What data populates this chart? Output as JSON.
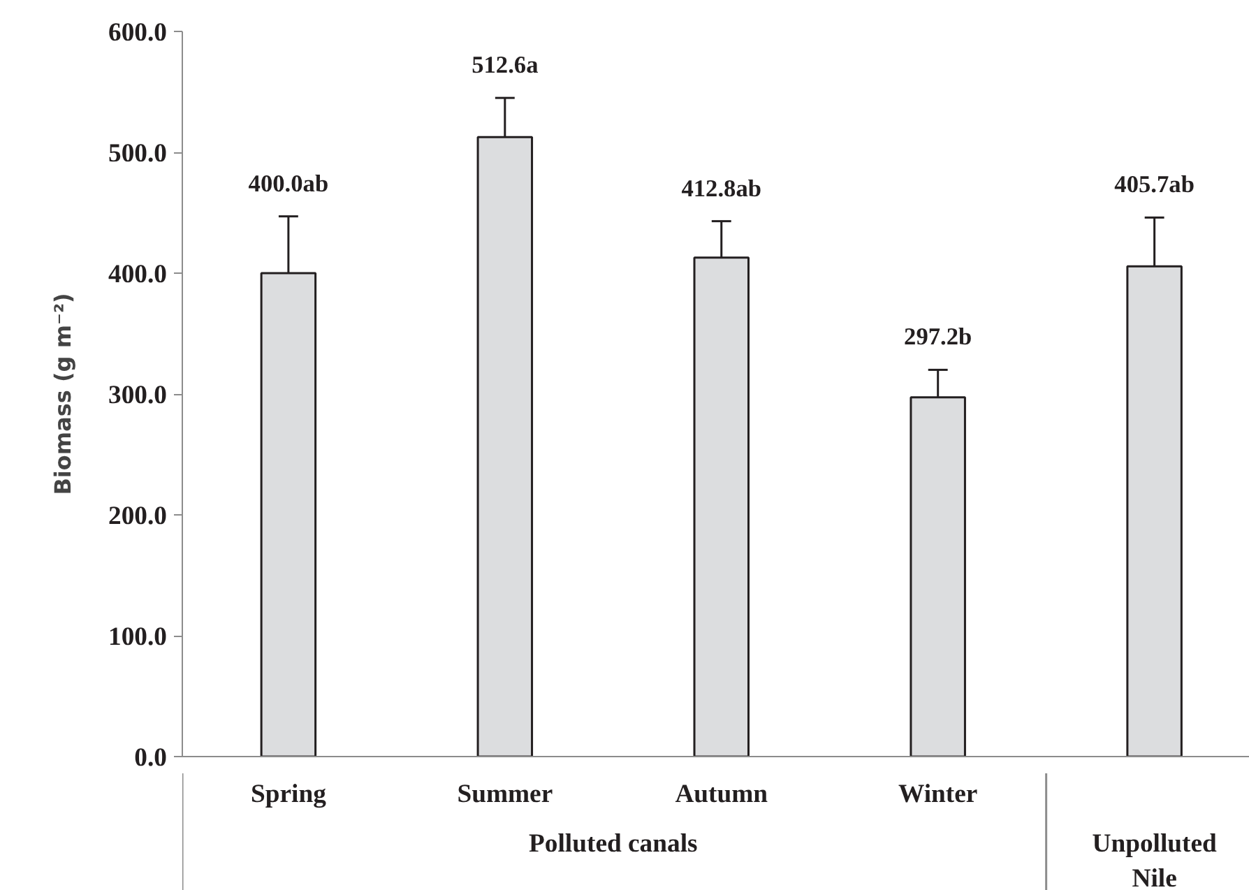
{
  "chart_data": {
    "type": "bar",
    "ylabel": "Biomass (g m⁻²)",
    "categories": [
      "Spring",
      "Summer",
      "Autumn",
      "Winter",
      null
    ],
    "values": [
      400.0,
      512.6,
      412.8,
      297.2,
      405.7
    ],
    "value_labels": [
      "400.0ab",
      "512.6a",
      "412.8ab",
      "297.2b",
      "405.7ab"
    ],
    "errors": [
      [
        400.0,
        447
      ],
      [
        512.6,
        545
      ],
      [
        412.8,
        443
      ],
      [
        297.2,
        320
      ],
      [
        405.7,
        446
      ]
    ],
    "color": "#dcdddf",
    "ylim": [
      0,
      600
    ],
    "yticks": [
      {
        "value": 0,
        "label": "0.0"
      },
      {
        "value": 100,
        "label": "100.0"
      },
      {
        "value": 200,
        "label": "200.0"
      },
      {
        "value": 300,
        "label": "300.0"
      },
      {
        "value": 400,
        "label": "400.0"
      },
      {
        "value": 500,
        "label": "500.0"
      },
      {
        "value": 600,
        "label": "600.0"
      }
    ],
    "annotations": [
      "Polluted canals",
      "Unpolluted Nile"
    ],
    "grid": false
  }
}
